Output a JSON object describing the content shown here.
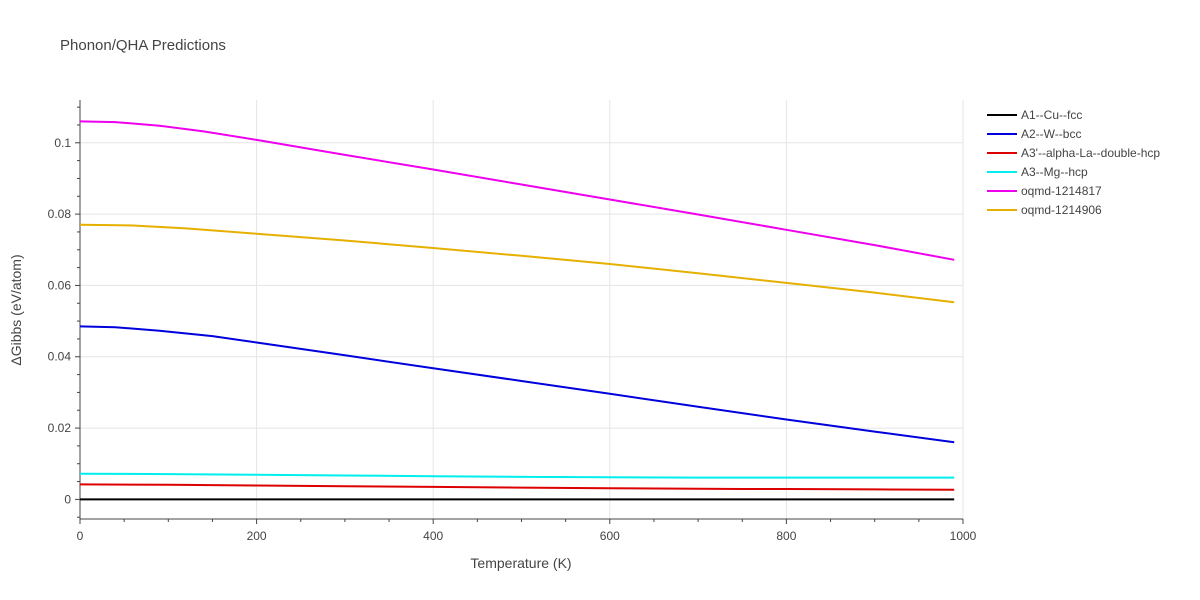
{
  "chart_data": {
    "type": "line",
    "title": "Phonon/QHA Predictions",
    "xlabel": "Temperature (K)",
    "ylabel": "ΔGibbs (eV/atom)",
    "xlim": [
      0,
      1000
    ],
    "ylim": [
      -0.0055,
      0.112
    ],
    "x_ticks": [
      0,
      200,
      400,
      600,
      800,
      1000
    ],
    "y_ticks": [
      0,
      0.02,
      0.04,
      0.06,
      0.08,
      0.1
    ],
    "x_tick_labels": [
      "0",
      "200",
      "400",
      "600",
      "800",
      "1000"
    ],
    "y_tick_labels": [
      "0",
      "0.02",
      "0.04",
      "0.06",
      "0.08",
      "0.1"
    ],
    "grid": true,
    "legend_position": "top-right",
    "series": [
      {
        "name": "A1--Cu--fcc",
        "color": "#000000",
        "x": [
          0,
          100,
          200,
          300,
          400,
          500,
          600,
          700,
          800,
          900,
          990
        ],
        "y": [
          0,
          0,
          0,
          0,
          0,
          0,
          0,
          0,
          0,
          0,
          0
        ]
      },
      {
        "name": "A2--W--bcc",
        "color": "#0000dd",
        "x": [
          0,
          40,
          90,
          150,
          200,
          300,
          400,
          500,
          600,
          700,
          800,
          900,
          990
        ],
        "y": [
          0.0485,
          0.0483,
          0.0473,
          0.0458,
          0.044,
          0.0404,
          0.0368,
          0.0332,
          0.0296,
          0.026,
          0.0224,
          0.019,
          0.016
        ]
      },
      {
        "name": "A3'--alpha-La--double-hcp",
        "color": "#dd0000",
        "x": [
          0,
          100,
          200,
          300,
          400,
          500,
          600,
          700,
          750,
          800,
          900,
          990
        ],
        "y": [
          0.0042,
          0.0041,
          0.0039,
          0.0037,
          0.0035,
          0.0033,
          0.0031,
          0.003,
          0.0029,
          0.0029,
          0.0028,
          0.0027
        ]
      },
      {
        "name": "A3--Mg--hcp",
        "color": "#00eeee",
        "x": [
          0,
          100,
          200,
          300,
          400,
          500,
          600,
          700,
          800,
          900,
          990
        ],
        "y": [
          0.0072,
          0.0071,
          0.0069,
          0.0067,
          0.0065,
          0.0063,
          0.0062,
          0.0061,
          0.0061,
          0.0061,
          0.0061
        ]
      },
      {
        "name": "oqmd-1214817",
        "color": "#ee00ee",
        "x": [
          0,
          40,
          90,
          140,
          200,
          300,
          400,
          500,
          600,
          700,
          800,
          900,
          990
        ],
        "y": [
          0.106,
          0.1058,
          0.1048,
          0.1032,
          0.1008,
          0.0966,
          0.0925,
          0.0883,
          0.0841,
          0.0799,
          0.0756,
          0.0713,
          0.0672
        ]
      },
      {
        "name": "oqmd-1214906",
        "color": "#e6b000",
        "x": [
          0,
          60,
          120,
          200,
          300,
          400,
          500,
          600,
          700,
          800,
          900,
          990
        ],
        "y": [
          0.077,
          0.0768,
          0.076,
          0.0745,
          0.0726,
          0.0705,
          0.0683,
          0.066,
          0.0634,
          0.0607,
          0.058,
          0.0553
        ]
      }
    ]
  }
}
